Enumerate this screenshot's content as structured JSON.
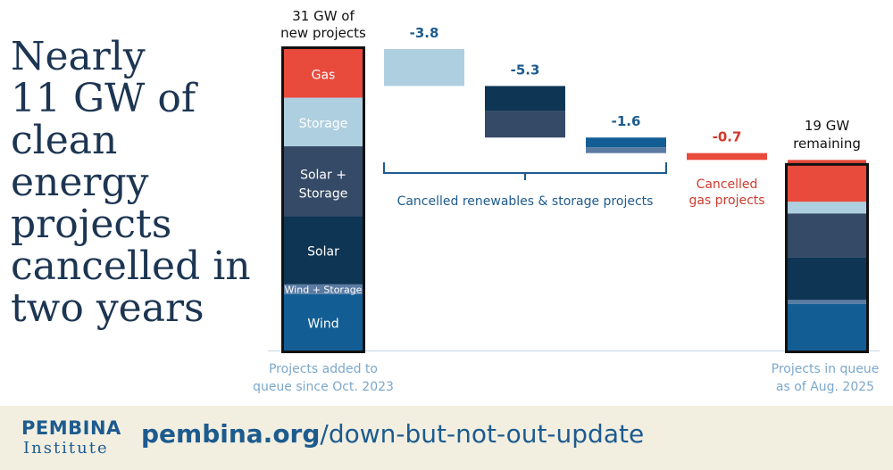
{
  "headline": [
    "Nearly",
    "11 GW of",
    "clean",
    "energy",
    "projects",
    "cancelled in",
    "two years"
  ],
  "footer": {
    "logo_line1": "PEMBINA",
    "logo_line2": "Institute",
    "url_domain": "pembina.org",
    "url_path": "/down-but-not-out-update"
  },
  "colors": {
    "gas": "#e84a3c",
    "storage": "#aecfdf",
    "solar_storage": "#354a66",
    "solar": "#0e3553",
    "wind_storage": "#5a7ca3",
    "wind": "#135d95",
    "text_blue": "#1d5b8f",
    "text_red": "#d2392c",
    "axis_label": "#7ca8cc"
  },
  "chart_data": {
    "type": "waterfall",
    "unit": "GW",
    "start_bar": {
      "title_lines": [
        "31 GW of",
        "new projects"
      ],
      "axis_label_lines": [
        "Projects added to",
        "queue since Oct. 2023"
      ],
      "total": 31,
      "segments": [
        {
          "name": "Wind",
          "value": 5.8
        },
        {
          "name": "Wind + Storage",
          "value": 1.0
        },
        {
          "name": "Solar",
          "value": 7.0
        },
        {
          "name": "Solar + Storage",
          "value": 7.2
        },
        {
          "name": "Storage",
          "value": 5.0
        },
        {
          "name": "Gas",
          "value": 5.0
        }
      ]
    },
    "steps": [
      {
        "label": "-3.8",
        "value": -3.8,
        "parts": [
          {
            "category": "Storage",
            "value": 3.8
          }
        ]
      },
      {
        "label": "-5.3",
        "value": -5.3,
        "parts": [
          {
            "category": "Solar",
            "value": 2.6
          },
          {
            "category": "Solar + Storage",
            "value": 2.7
          }
        ]
      },
      {
        "label": "-1.6",
        "value": -1.6,
        "parts": [
          {
            "category": "Wind",
            "value": 1.0
          },
          {
            "category": "Wind + Storage",
            "value": 0.6
          }
        ]
      },
      {
        "label": "-0.7",
        "value": -0.7,
        "parts": [
          {
            "category": "Gas",
            "value": 0.7
          }
        ]
      }
    ],
    "group_labels": {
      "renewables": "Cancelled renewables & storage projects",
      "gas_lines": [
        "Cancelled",
        "gas projects"
      ]
    },
    "end_bar": {
      "title_lines": [
        "19 GW",
        "remaining"
      ],
      "axis_label_lines": [
        "Projects in queue",
        "as of Aug. 2025"
      ],
      "total": 19
    }
  }
}
